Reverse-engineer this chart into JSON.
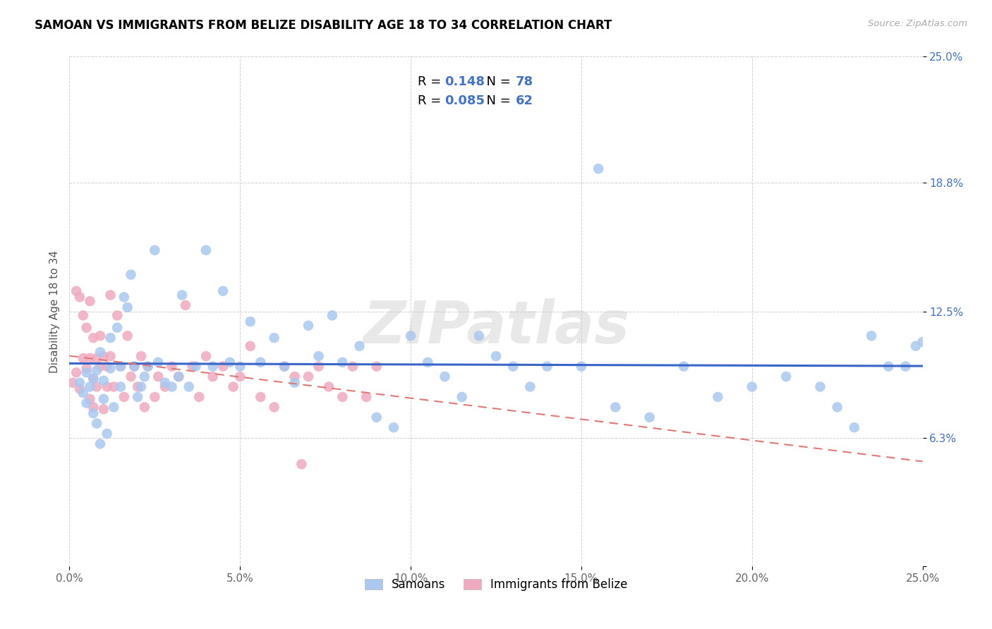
{
  "title": "SAMOAN VS IMMIGRANTS FROM BELIZE DISABILITY AGE 18 TO 34 CORRELATION CHART",
  "source": "Source: ZipAtlas.com",
  "ylabel": "Disability Age 18 to 34",
  "xmin": 0.0,
  "xmax": 0.25,
  "ymin": 0.0,
  "ymax": 0.25,
  "xtick_positions": [
    0.0,
    0.05,
    0.1,
    0.15,
    0.2,
    0.25
  ],
  "xtick_labels": [
    "0.0%",
    "5.0%",
    "10.0%",
    "15.0%",
    "20.0%",
    "25.0%"
  ],
  "ytick_positions": [
    0.0,
    0.063,
    0.125,
    0.188,
    0.25
  ],
  "ytick_labels": [
    "",
    "6.3%",
    "12.5%",
    "18.8%",
    "25.0%"
  ],
  "R_samoans": 0.148,
  "N_samoans": 78,
  "R_belize": 0.085,
  "N_belize": 62,
  "color_samoans": "#aac8f0",
  "color_belize": "#f0aac0",
  "trendline_samoans_color": "#3a65c8",
  "trendline_belize_color": "#e07878",
  "watermark_text": "ZIPatlas",
  "tick_color_right": "#4472c4",
  "samoans_x": [
    0.003,
    0.004,
    0.005,
    0.005,
    0.006,
    0.007,
    0.007,
    0.008,
    0.008,
    0.009,
    0.009,
    0.01,
    0.01,
    0.011,
    0.012,
    0.012,
    0.013,
    0.014,
    0.015,
    0.015,
    0.016,
    0.017,
    0.018,
    0.019,
    0.02,
    0.021,
    0.022,
    0.023,
    0.025,
    0.026,
    0.028,
    0.03,
    0.032,
    0.033,
    0.035,
    0.037,
    0.04,
    0.042,
    0.045,
    0.047,
    0.05,
    0.053,
    0.056,
    0.06,
    0.063,
    0.066,
    0.07,
    0.073,
    0.077,
    0.08,
    0.085,
    0.09,
    0.095,
    0.1,
    0.105,
    0.11,
    0.115,
    0.12,
    0.125,
    0.13,
    0.135,
    0.14,
    0.15,
    0.155,
    0.16,
    0.17,
    0.18,
    0.19,
    0.2,
    0.21,
    0.22,
    0.225,
    0.23,
    0.235,
    0.24,
    0.245,
    0.248,
    0.25
  ],
  "samoans_y": [
    0.09,
    0.085,
    0.095,
    0.08,
    0.088,
    0.092,
    0.075,
    0.096,
    0.07,
    0.06,
    0.105,
    0.082,
    0.091,
    0.065,
    0.112,
    0.097,
    0.078,
    0.117,
    0.088,
    0.098,
    0.132,
    0.127,
    0.143,
    0.098,
    0.083,
    0.088,
    0.093,
    0.098,
    0.155,
    0.1,
    0.09,
    0.088,
    0.093,
    0.133,
    0.088,
    0.098,
    0.155,
    0.098,
    0.135,
    0.1,
    0.098,
    0.12,
    0.1,
    0.112,
    0.098,
    0.09,
    0.118,
    0.103,
    0.123,
    0.1,
    0.108,
    0.073,
    0.068,
    0.113,
    0.1,
    0.093,
    0.083,
    0.113,
    0.103,
    0.098,
    0.088,
    0.098,
    0.098,
    0.195,
    0.078,
    0.073,
    0.098,
    0.083,
    0.088,
    0.093,
    0.088,
    0.078,
    0.068,
    0.113,
    0.098,
    0.098,
    0.108,
    0.11
  ],
  "belize_x": [
    0.001,
    0.002,
    0.002,
    0.003,
    0.003,
    0.004,
    0.004,
    0.005,
    0.005,
    0.006,
    0.006,
    0.006,
    0.007,
    0.007,
    0.007,
    0.008,
    0.008,
    0.009,
    0.009,
    0.01,
    0.01,
    0.011,
    0.011,
    0.012,
    0.012,
    0.013,
    0.014,
    0.015,
    0.016,
    0.017,
    0.018,
    0.019,
    0.02,
    0.021,
    0.022,
    0.023,
    0.025,
    0.026,
    0.028,
    0.03,
    0.032,
    0.034,
    0.036,
    0.038,
    0.04,
    0.042,
    0.045,
    0.048,
    0.05,
    0.053,
    0.056,
    0.06,
    0.063,
    0.066,
    0.068,
    0.07,
    0.073,
    0.076,
    0.08,
    0.083,
    0.087,
    0.09
  ],
  "belize_y": [
    0.09,
    0.095,
    0.135,
    0.132,
    0.087,
    0.102,
    0.123,
    0.097,
    0.117,
    0.082,
    0.102,
    0.13,
    0.092,
    0.112,
    0.078,
    0.102,
    0.088,
    0.098,
    0.113,
    0.077,
    0.103,
    0.088,
    0.098,
    0.103,
    0.133,
    0.088,
    0.123,
    0.098,
    0.083,
    0.113,
    0.093,
    0.098,
    0.088,
    0.103,
    0.078,
    0.098,
    0.083,
    0.093,
    0.088,
    0.098,
    0.093,
    0.128,
    0.098,
    0.083,
    0.103,
    0.093,
    0.098,
    0.088,
    0.093,
    0.108,
    0.083,
    0.078,
    0.098,
    0.093,
    0.05,
    0.093,
    0.098,
    0.088,
    0.083,
    0.098,
    0.083,
    0.098
  ]
}
